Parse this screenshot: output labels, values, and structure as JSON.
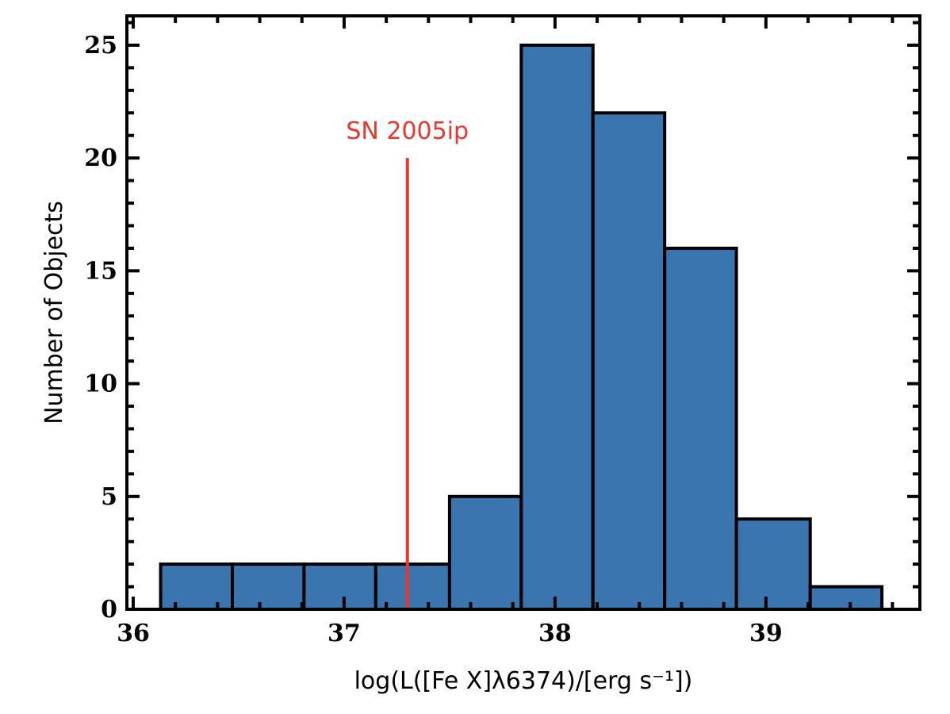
{
  "chart_data": {
    "type": "bar",
    "subtype": "histogram",
    "bins": [
      {
        "x0": 36.13,
        "x1": 36.47,
        "count": 2
      },
      {
        "x0": 36.47,
        "x1": 36.81,
        "count": 2
      },
      {
        "x0": 36.81,
        "x1": 37.15,
        "count": 2
      },
      {
        "x0": 37.15,
        "x1": 37.5,
        "count": 2
      },
      {
        "x0": 37.5,
        "x1": 37.84,
        "count": 5
      },
      {
        "x0": 37.84,
        "x1": 38.18,
        "count": 25
      },
      {
        "x0": 38.18,
        "x1": 38.52,
        "count": 22
      },
      {
        "x0": 38.52,
        "x1": 38.86,
        "count": 16
      },
      {
        "x0": 38.86,
        "x1": 39.21,
        "count": 4
      },
      {
        "x0": 39.21,
        "x1": 39.55,
        "count": 1
      }
    ],
    "xlim": [
      35.97,
      39.73
    ],
    "ylim": [
      0,
      26.3
    ],
    "xticks": [
      36,
      37,
      38,
      39
    ],
    "xtick_labels": [
      "36",
      "37",
      "38",
      "39"
    ],
    "x_minor_step": 0.2,
    "yticks": [
      0,
      5,
      10,
      15,
      20,
      25
    ],
    "ytick_labels": [
      "0",
      "5",
      "10",
      "15",
      "20",
      "25"
    ],
    "y_minor_step": 1,
    "xlabel": "log(L([Fe X]λ6374)/[erg s⁻¹])",
    "ylabel": "Number of Objects",
    "bar_color": "#3b75af",
    "edge_color": "#000000",
    "annotation": {
      "text": "SN 2005ip",
      "x": 37.3,
      "y_top": 20,
      "color": "#e8382d"
    }
  }
}
